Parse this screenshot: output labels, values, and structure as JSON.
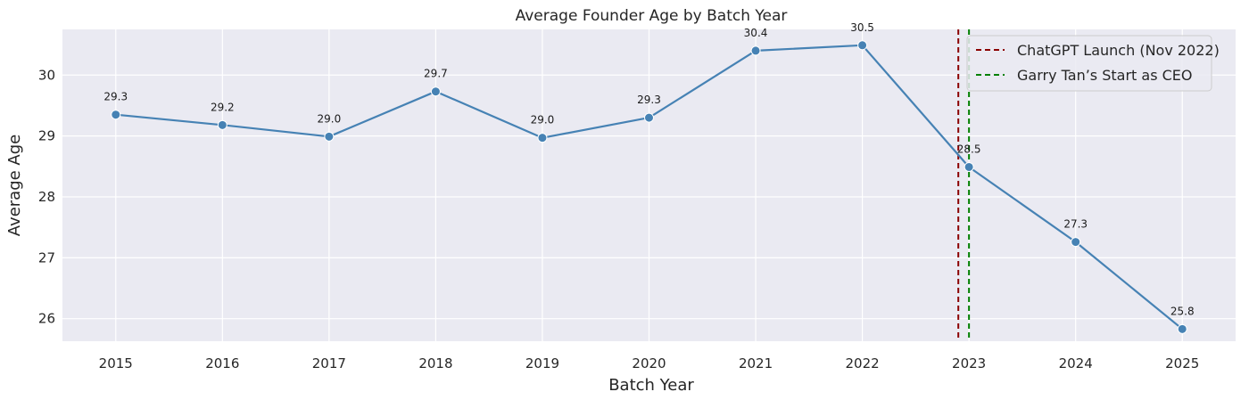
{
  "chart_data": {
    "type": "line",
    "title": "Average Founder Age by Batch Year",
    "xlabel": "Batch Year",
    "ylabel": "Average Age",
    "x": [
      2015,
      2016,
      2017,
      2018,
      2019,
      2020,
      2021,
      2022,
      2023,
      2024,
      2025
    ],
    "x_tick_labels": [
      "2015",
      "2016",
      "2017",
      "2018",
      "2019",
      "2020",
      "2021",
      "2022",
      "2023",
      "2024",
      "2025"
    ],
    "y_ticks": [
      26,
      27,
      28,
      29,
      30
    ],
    "y_tick_labels": [
      "26",
      "27",
      "28",
      "29",
      "30"
    ],
    "xlim": [
      2014.5,
      2025.5
    ],
    "ylim": [
      25.63,
      30.75
    ],
    "grid": true,
    "series": [
      {
        "values": [
          29.35,
          29.18,
          28.99,
          29.73,
          28.97,
          29.3,
          30.4,
          30.49,
          28.49,
          27.26,
          25.83
        ],
        "data_labels": [
          "29.3",
          "29.2",
          "29.0",
          "29.7",
          "29.0",
          "29.3",
          "30.4",
          "30.5",
          "28.5",
          "27.3",
          "25.8"
        ],
        "color": "#4682b4",
        "marker": "circle"
      }
    ],
    "vlines": [
      {
        "x": 2022.9,
        "label": "ChatGPT Launch (Nov 2022)",
        "color": "#8b0000",
        "style": "dashed"
      },
      {
        "x": 2023.0,
        "label": "Garry Tan’s Start as CEO",
        "color": "#008000",
        "style": "dashed"
      }
    ],
    "legend_position": "top-right",
    "background": "#eaeaf2"
  }
}
